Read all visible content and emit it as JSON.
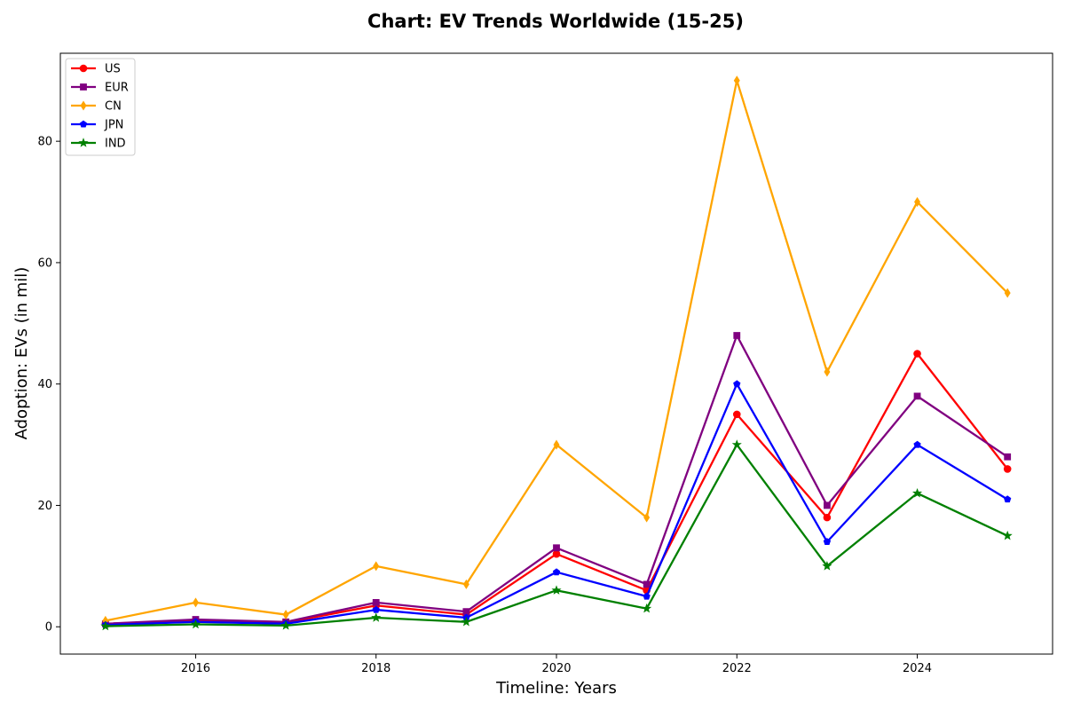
{
  "chart_data": {
    "type": "line",
    "title": "Chart: EV Trends Worldwide (15-25)",
    "xlabel": "Timeline: Years",
    "ylabel": "Adoption: EVs (in mil)",
    "x": [
      2015,
      2016,
      2017,
      2018,
      2019,
      2020,
      2021,
      2022,
      2023,
      2024,
      2025
    ],
    "xlim": [
      2014.5,
      2025.5
    ],
    "ylim": [
      -4.5,
      94.5
    ],
    "xticks": [
      2016,
      2018,
      2020,
      2022,
      2024
    ],
    "xtick_labels": [
      "2016",
      "2018",
      "2020",
      "2022",
      "2024"
    ],
    "yticks": [
      0,
      20,
      40,
      60,
      80
    ],
    "ytick_labels": [
      "0",
      "20",
      "40",
      "60",
      "80"
    ],
    "grid": false,
    "legend_position": "top-left",
    "series": [
      {
        "name": "US",
        "color": "#ff0000",
        "marker": "circle",
        "values": [
          0.5,
          1.0,
          0.7,
          3.5,
          2.0,
          12,
          6,
          35,
          18,
          45,
          26
        ]
      },
      {
        "name": "EUR",
        "color": "#800080",
        "marker": "square",
        "values": [
          0.5,
          1.2,
          0.8,
          4.0,
          2.5,
          13,
          7,
          48,
          20,
          38,
          28
        ]
      },
      {
        "name": "CN",
        "color": "#ffa500",
        "marker": "diamond",
        "values": [
          1.0,
          4.0,
          2.0,
          10,
          7,
          30,
          18,
          90,
          42,
          70,
          55
        ]
      },
      {
        "name": "JPN",
        "color": "#0000ff",
        "marker": "pentagon",
        "values": [
          0.3,
          0.8,
          0.5,
          2.8,
          1.5,
          9,
          5,
          40,
          14,
          30,
          21
        ]
      },
      {
        "name": "IND",
        "color": "#008000",
        "marker": "star",
        "values": [
          0.1,
          0.4,
          0.2,
          1.5,
          0.8,
          6,
          3,
          30,
          10,
          22,
          15
        ]
      }
    ]
  }
}
